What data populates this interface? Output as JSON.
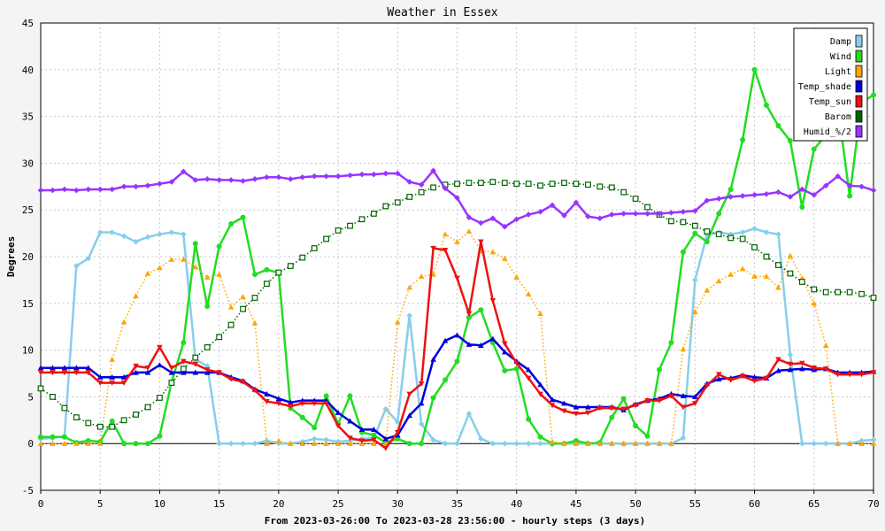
{
  "chart_data": {
    "type": "line",
    "title": "Weather in Essex",
    "ylabel": "Degrees",
    "xlabel": "From 2023-03-26:00 To 2023-03-28 23:56:00 - hourly steps (3 days)",
    "xlim": [
      0,
      70
    ],
    "ylim": [
      -5,
      45
    ],
    "x_ticks": [
      0,
      5,
      10,
      15,
      20,
      25,
      30,
      35,
      40,
      45,
      50,
      55,
      60,
      65,
      70
    ],
    "y_ticks": [
      -5,
      0,
      5,
      10,
      15,
      20,
      25,
      30,
      35,
      40,
      45
    ],
    "grid": true,
    "legend_position": "top-right",
    "series": [
      {
        "name": "Damp",
        "color": "#87ceeb",
        "marker": "diamond",
        "style": "solid",
        "width": 2.5,
        "values": [
          0.5,
          0.6,
          0.8,
          19,
          19.8,
          22.6,
          22.6,
          22.2,
          21.6,
          22.1,
          22.4,
          22.6,
          22.4,
          9.0,
          8.3,
          0,
          0,
          0,
          0,
          0.3,
          0,
          0,
          0.2,
          0.5,
          0.4,
          0.2,
          0.3,
          0.5,
          0.6,
          3.7,
          2.3,
          13.7,
          2.1,
          0.4,
          0,
          0,
          3.2,
          0.5,
          0,
          0,
          0,
          0,
          0,
          0,
          0,
          0,
          0,
          0,
          0,
          0,
          0,
          0,
          0,
          0,
          0.6,
          17.5,
          22.3,
          22.6,
          22.4,
          22.6,
          23.0,
          22.6,
          22.4,
          9.5,
          0,
          0,
          0,
          0,
          0,
          0.3,
          0.4
        ]
      },
      {
        "name": "Wind",
        "color": "#22dd22",
        "marker": "circle",
        "style": "solid",
        "width": 2.5,
        "values": [
          0.7,
          0.7,
          0.7,
          0.1,
          0.3,
          0.2,
          2.4,
          0,
          0,
          0,
          0.8,
          6.6,
          10.8,
          21.4,
          14.7,
          21.1,
          23.5,
          24.2,
          18.1,
          18.6,
          18.3,
          3.8,
          2.8,
          1.7,
          5.1,
          2.1,
          5.1,
          1.2,
          0.9,
          0.1,
          0.5,
          0,
          0,
          4.9,
          6.8,
          8.8,
          13.5,
          14.3,
          10.8,
          7.8,
          8.0,
          2.6,
          0.7,
          0,
          0,
          0.3,
          0,
          0.1,
          2.8,
          4.8,
          1.9,
          0.8,
          7.9,
          10.8,
          20.5,
          22.5,
          21.6,
          24.6,
          27.2,
          32.5,
          40.0,
          36.2,
          34.0,
          32.4,
          25.3,
          31.5,
          33.0,
          36.0,
          26.5,
          36.5,
          37.3
        ]
      },
      {
        "name": "Light",
        "color": "#ffa500",
        "marker": "triangle-up",
        "style": "dotted",
        "width": 1.5,
        "values": [
          0,
          0,
          0,
          0,
          0,
          0,
          9.0,
          13.0,
          15.8,
          18.2,
          18.8,
          19.7,
          19.7,
          18.9,
          17.8,
          18.1,
          14.6,
          15.7,
          12.9,
          0,
          0.3,
          0,
          0,
          0,
          0,
          0,
          0,
          0,
          0,
          0,
          13.0,
          16.7,
          17.9,
          18.1,
          22.4,
          21.6,
          22.7,
          20.6,
          20.5,
          19.8,
          17.8,
          16.0,
          13.9,
          0.2,
          0,
          0,
          0,
          0,
          0,
          0,
          0,
          0,
          0,
          0,
          10.1,
          14.1,
          16.4,
          17.4,
          18.1,
          18.7,
          17.9,
          17.9,
          16.7,
          20.1,
          17.7,
          15.0,
          10.5,
          0,
          0,
          0,
          0
        ]
      },
      {
        "name": "Temp_shade",
        "color": "#0000dd",
        "marker": "triangle-up",
        "style": "solid",
        "width": 2.5,
        "values": [
          8.1,
          8.1,
          8.1,
          8.1,
          8.1,
          7.1,
          7.1,
          7.1,
          7.6,
          7.6,
          8.4,
          7.6,
          7.6,
          7.6,
          7.6,
          7.6,
          7.1,
          6.7,
          5.8,
          5.3,
          4.8,
          4.4,
          4.6,
          4.6,
          4.6,
          3.3,
          2.4,
          1.5,
          1.5,
          0.5,
          0.9,
          3.0,
          4.3,
          9.0,
          11.0,
          11.6,
          10.6,
          10.5,
          11.2,
          9.8,
          8.8,
          7.9,
          6.3,
          4.7,
          4.3,
          3.9,
          3.9,
          3.9,
          3.9,
          3.6,
          4.2,
          4.6,
          4.8,
          5.3,
          5.1,
          5.0,
          6.4,
          6.9,
          7.0,
          7.3,
          7.1,
          7.0,
          7.8,
          7.9,
          8.0,
          7.9,
          8.0,
          7.6,
          7.6,
          7.6,
          7.7
        ]
      },
      {
        "name": "Temp_sun",
        "color": "#ee1111",
        "marker": "triangle-down",
        "style": "solid",
        "width": 2.5,
        "values": [
          7.6,
          7.6,
          7.6,
          7.6,
          7.6,
          6.5,
          6.5,
          6.5,
          8.3,
          8.1,
          10.3,
          8.1,
          8.8,
          8.5,
          7.9,
          7.6,
          6.9,
          6.6,
          5.7,
          4.5,
          4.3,
          4.0,
          4.3,
          4.3,
          4.3,
          1.9,
          0.6,
          0.3,
          0.4,
          -0.5,
          1.2,
          5.3,
          6.4,
          20.9,
          20.7,
          17.7,
          13.9,
          21.6,
          15.3,
          10.7,
          8.6,
          7.0,
          5.3,
          4.1,
          3.5,
          3.2,
          3.3,
          3.8,
          3.8,
          3.7,
          4.1,
          4.6,
          4.6,
          5.1,
          3.9,
          4.3,
          6.2,
          7.4,
          6.8,
          7.2,
          6.7,
          7.0,
          9.0,
          8.5,
          8.6,
          8.1,
          8.0,
          7.4,
          7.4,
          7.4,
          7.6
        ]
      },
      {
        "name": "Barom",
        "color": "#006400",
        "marker": "square-open",
        "style": "dotted",
        "width": 1.5,
        "values": [
          5.9,
          5.0,
          3.8,
          2.8,
          2.2,
          1.8,
          1.8,
          2.5,
          3.1,
          3.9,
          4.9,
          6.5,
          8.0,
          9.2,
          10.3,
          11.4,
          12.7,
          14.4,
          15.6,
          17.1,
          18.3,
          19.0,
          19.9,
          20.9,
          21.9,
          22.8,
          23.3,
          24.0,
          24.6,
          25.4,
          25.8,
          26.4,
          26.9,
          27.4,
          27.7,
          27.8,
          27.9,
          27.9,
          28.0,
          27.9,
          27.8,
          27.8,
          27.6,
          27.8,
          27.9,
          27.8,
          27.7,
          27.5,
          27.4,
          26.9,
          26.2,
          25.3,
          24.5,
          23.8,
          23.7,
          23.3,
          22.7,
          22.4,
          22.0,
          21.9,
          21.0,
          20.0,
          19.1,
          18.2,
          17.3,
          16.5,
          16.2,
          16.2,
          16.2,
          16.0,
          15.6
        ]
      },
      {
        "name": "Humid_%/2",
        "color": "#9933ff",
        "marker": "diamond",
        "style": "solid",
        "width": 2.5,
        "values": [
          27.1,
          27.1,
          27.2,
          27.1,
          27.2,
          27.2,
          27.2,
          27.5,
          27.5,
          27.6,
          27.8,
          28.0,
          29.1,
          28.2,
          28.3,
          28.2,
          28.2,
          28.1,
          28.3,
          28.5,
          28.5,
          28.3,
          28.5,
          28.6,
          28.6,
          28.6,
          28.7,
          28.8,
          28.8,
          28.9,
          28.9,
          28.0,
          27.7,
          29.2,
          27.3,
          26.3,
          24.2,
          23.6,
          24.1,
          23.2,
          24.0,
          24.5,
          24.8,
          25.5,
          24.4,
          25.8,
          24.3,
          24.1,
          24.5,
          24.6,
          24.6,
          24.6,
          24.6,
          24.7,
          24.8,
          24.9,
          26.0,
          26.2,
          26.4,
          26.5,
          26.6,
          26.7,
          26.9,
          26.4,
          27.2,
          26.6,
          27.6,
          28.6,
          27.6,
          27.5,
          27.1
        ]
      }
    ]
  }
}
